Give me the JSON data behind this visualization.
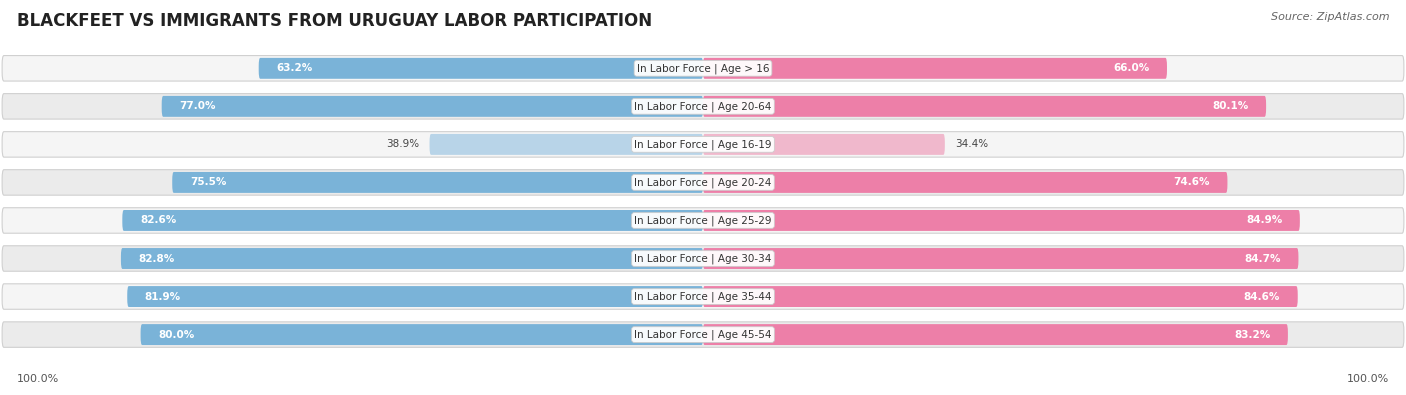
{
  "title": "BLACKFEET VS IMMIGRANTS FROM URUGUAY LABOR PARTICIPATION",
  "source": "Source: ZipAtlas.com",
  "categories": [
    "In Labor Force | Age > 16",
    "In Labor Force | Age 20-64",
    "In Labor Force | Age 16-19",
    "In Labor Force | Age 20-24",
    "In Labor Force | Age 25-29",
    "In Labor Force | Age 30-34",
    "In Labor Force | Age 35-44",
    "In Labor Force | Age 45-54"
  ],
  "blackfeet_values": [
    63.2,
    77.0,
    38.9,
    75.5,
    82.6,
    82.8,
    81.9,
    80.0
  ],
  "uruguay_values": [
    66.0,
    80.1,
    34.4,
    74.6,
    84.9,
    84.7,
    84.6,
    83.2
  ],
  "blackfeet_color": "#7ab3d8",
  "blackfeet_color_light": "#b8d4e8",
  "uruguay_color": "#ed7fa8",
  "uruguay_color_light": "#f0b8cc",
  "row_bg_odd": "#f5f5f5",
  "row_bg_even": "#ebebeb",
  "row_border": "#d0d0d0",
  "title_fontsize": 12,
  "label_fontsize": 7.5,
  "value_fontsize": 7.5,
  "legend_fontsize": 9,
  "max_value": 100.0,
  "footer_label": "100.0%"
}
